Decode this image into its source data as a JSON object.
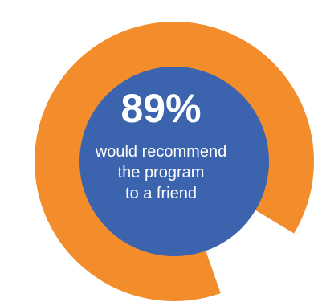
{
  "chart_data": {
    "type": "pie",
    "title": "",
    "slices": [
      {
        "label": "would recommend",
        "value": 89,
        "color": "#F38D2C"
      },
      {
        "label": "",
        "value": 11,
        "color": "#FFFFFF"
      }
    ],
    "center": {
      "value_label": "89%",
      "caption_lines": [
        "would recommend",
        "the program",
        "to a friend"
      ],
      "fill_color": "#3C63AE"
    }
  }
}
